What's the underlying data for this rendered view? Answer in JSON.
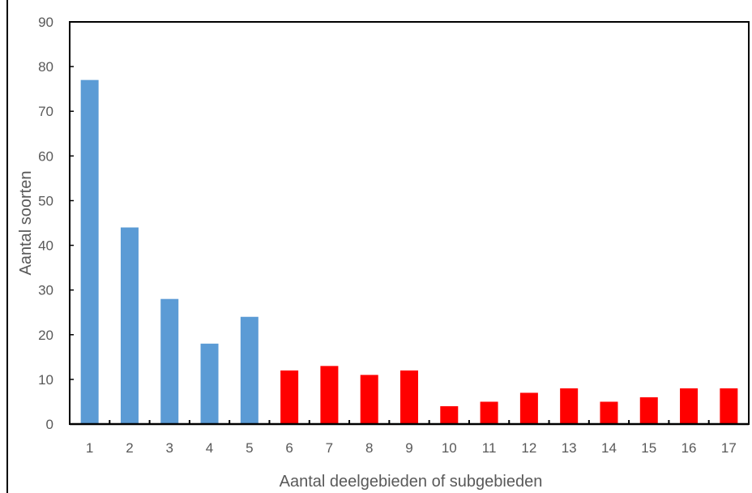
{
  "chart_data": {
    "type": "bar",
    "xlabel": "Aantal deelgebieden of subgebieden",
    "ylabel": "Aantal soorten",
    "ylim": [
      0,
      90
    ],
    "yticks": [
      0,
      10,
      20,
      30,
      40,
      50,
      60,
      70,
      80,
      90
    ],
    "categories": [
      "1",
      "2",
      "3",
      "4",
      "5",
      "6",
      "7",
      "8",
      "9",
      "10",
      "11",
      "12",
      "13",
      "14",
      "15",
      "16",
      "17"
    ],
    "values": [
      77,
      44,
      28,
      18,
      24,
      12,
      13,
      11,
      12,
      4,
      5,
      7,
      8,
      5,
      6,
      8,
      8
    ],
    "bar_colors": [
      "#5b9bd5",
      "#5b9bd5",
      "#5b9bd5",
      "#5b9bd5",
      "#5b9bd5",
      "#ff0000",
      "#ff0000",
      "#ff0000",
      "#ff0000",
      "#ff0000",
      "#ff0000",
      "#ff0000",
      "#ff0000",
      "#ff0000",
      "#ff0000",
      "#ff0000",
      "#ff0000"
    ],
    "grid": false,
    "legend": "none"
  }
}
